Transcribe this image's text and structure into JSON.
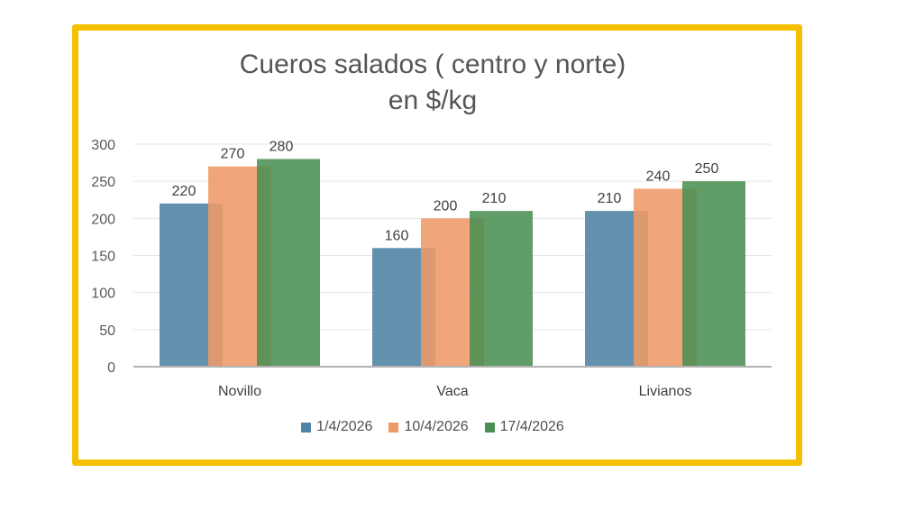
{
  "chart_data": {
    "type": "bar",
    "title_lines": [
      "Cueros salados ( centro y norte)",
      "en $/kg"
    ],
    "categories": [
      "Novillo",
      "Vaca",
      "Livianos"
    ],
    "series": [
      {
        "name": "1/4/2026",
        "values": [
          220,
          160,
          210
        ],
        "color": "#4e83a3"
      },
      {
        "name": "10/4/2026",
        "values": [
          270,
          200,
          240
        ],
        "color": "#ee9a68"
      },
      {
        "name": "17/4/2026",
        "values": [
          280,
          210,
          250
        ],
        "color": "#4b8f53"
      }
    ],
    "y_ticks": [
      "0",
      "50",
      "100",
      "150",
      "200",
      "250",
      "300"
    ],
    "ylim": [
      0,
      300
    ],
    "grid": true,
    "legend_position": "bottom",
    "data_labels": true,
    "frame_color": "#f5c000"
  }
}
